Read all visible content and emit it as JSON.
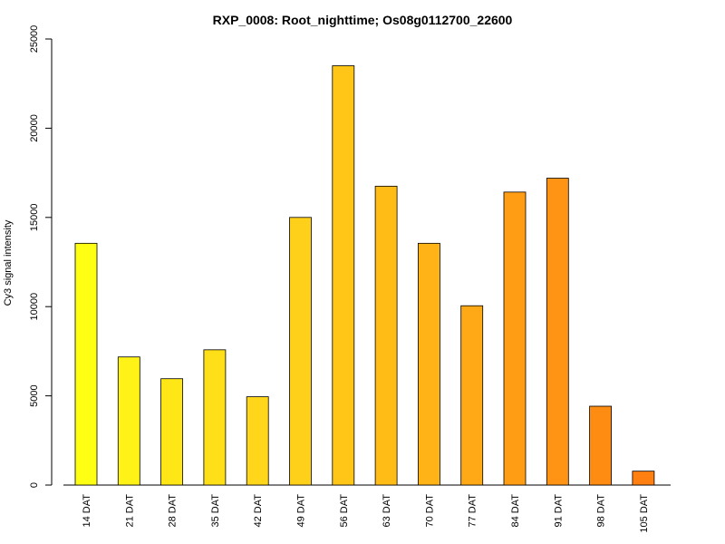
{
  "chart_data": {
    "type": "bar",
    "title": "RXP_0008: Root_nighttime; Os08g0112700_22600",
    "xlabel": "",
    "ylabel": "Cy3 signal intensity",
    "categories": [
      "14 DAT",
      "21 DAT",
      "28 DAT",
      "35 DAT",
      "42 DAT",
      "49 DAT",
      "56 DAT",
      "63 DAT",
      "70 DAT",
      "77 DAT",
      "84 DAT",
      "91 DAT",
      "98 DAT",
      "105 DAT"
    ],
    "values": [
      13550,
      7180,
      5960,
      7580,
      4950,
      15000,
      23500,
      16750,
      13550,
      10050,
      16420,
      17200,
      4420,
      780
    ],
    "colors": [
      "#ffff14",
      "#fff216",
      "#ffe717",
      "#ffe018",
      "#ffd61a",
      "#ffd019",
      "#ffc517",
      "#ffbc17",
      "#ffb316",
      "#ffa916",
      "#ff9e15",
      "#ff9414",
      "#ff8c12",
      "#ff7f10"
    ],
    "ylim": [
      0,
      25000
    ],
    "yticks": [
      0,
      5000,
      10000,
      15000,
      20000,
      25000
    ],
    "grid": false,
    "legend": "none"
  }
}
